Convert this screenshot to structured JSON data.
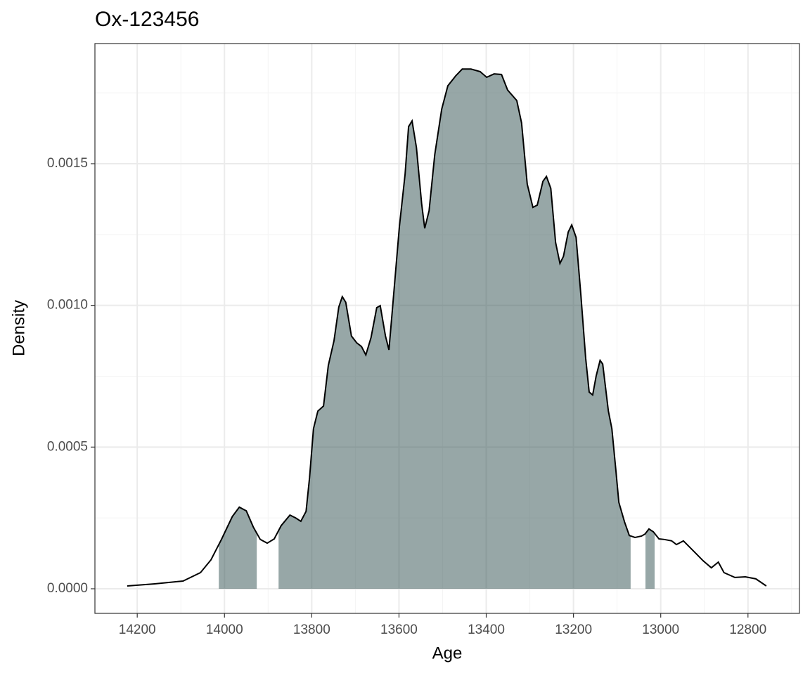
{
  "chart_data": {
    "type": "density",
    "title": "Ox-123456",
    "xlabel": "Age",
    "ylabel": "Density",
    "x": [
      14223,
      14160,
      14095,
      14055,
      14031,
      14007,
      13982,
      13966,
      13950,
      13934,
      13918,
      13902,
      13886,
      13870,
      13850,
      13837,
      13825,
      13813,
      13805,
      13796,
      13786,
      13773,
      13762,
      13749,
      13738,
      13730,
      13722,
      13709,
      13697,
      13686,
      13676,
      13664,
      13651,
      13643,
      13631,
      13623,
      13615,
      13599,
      13586,
      13578,
      13570,
      13560,
      13548,
      13541,
      13531,
      13518,
      13502,
      13488,
      13470,
      13455,
      13435,
      13414,
      13399,
      13382,
      13365,
      13351,
      13330,
      13319,
      13306,
      13293,
      13283,
      13270,
      13262,
      13252,
      13241,
      13231,
      13223,
      13212,
      13204,
      13194,
      13183,
      13172,
      13164,
      13156,
      13148,
      13139,
      13133,
      13120,
      13112,
      13103,
      13096,
      13083,
      13072,
      13059,
      13044,
      13036,
      13027,
      13017,
      13004,
      12992,
      12975,
      12964,
      12948,
      12935,
      12919,
      12903,
      12884,
      12868,
      12855,
      12830,
      12806,
      12782,
      12758
    ],
    "values": [
      9.9e-06,
      1.74e-05,
      2.73e-05,
      5.7e-05,
      0.000102,
      0.000174,
      0.000255,
      0.000288,
      0.000275,
      0.000218,
      0.000174,
      0.000161,
      0.000176,
      0.000223,
      0.00026,
      0.00025,
      0.000238,
      0.000273,
      0.000392,
      0.000565,
      0.000627,
      0.000645,
      0.000788,
      0.000875,
      0.000994,
      0.001031,
      0.001011,
      0.000892,
      0.000868,
      0.000855,
      0.000825,
      0.000887,
      0.000992,
      0.000999,
      0.000892,
      0.000843,
      0.000987,
      0.001279,
      0.001463,
      0.001631,
      0.001651,
      0.001557,
      0.001358,
      0.001272,
      0.001334,
      0.001532,
      0.001693,
      0.001775,
      0.00181,
      0.001834,
      0.001834,
      0.001825,
      0.001805,
      0.001817,
      0.001815,
      0.00176,
      0.001723,
      0.001644,
      0.001428,
      0.001346,
      0.001354,
      0.001438,
      0.001455,
      0.001413,
      0.001222,
      0.001148,
      0.001173,
      0.001259,
      0.001284,
      0.00124,
      0.001036,
      0.000813,
      0.000694,
      0.000684,
      0.000751,
      0.000806,
      0.000793,
      0.000627,
      0.000565,
      0.000421,
      0.000305,
      0.000236,
      0.000188,
      0.000181,
      0.000186,
      0.000193,
      0.000211,
      0.000201,
      0.000176,
      0.000174,
      0.000169,
      0.000156,
      0.000169,
      0.000149,
      0.000124,
      9.9e-05,
      7.4e-05,
      9.4e-05,
      5.7e-05,
      4e-05,
      4.2e-05,
      3.5e-05,
      9.9e-06
    ],
    "intervals": [
      [
        14013,
        13926
      ],
      [
        13876,
        13069
      ],
      [
        13035,
        13014
      ]
    ],
    "line_color": "#000000",
    "fill_color": "#2f4f4f",
    "fill_opacity": 0.5,
    "xlim": [
      14297,
      12682
    ],
    "ylim": [
      -8.68e-05,
      0.001924
    ],
    "xticks": [
      14200,
      14000,
      13800,
      13600,
      13400,
      13200,
      13000,
      12800
    ],
    "xticks_minor": [
      14100,
      13900,
      13700,
      13500,
      13300,
      13100,
      12900,
      12700
    ],
    "yticks": [
      {
        "value": 0,
        "label": "0.0000"
      },
      {
        "value": 0.0005,
        "label": "0.0005"
      },
      {
        "value": 0.001,
        "label": "0.0010"
      },
      {
        "value": 0.0015,
        "label": "0.0015"
      }
    ],
    "yticks_minor": [
      0.00025,
      0.00075,
      0.00125,
      0.00175
    ],
    "grid": true
  }
}
